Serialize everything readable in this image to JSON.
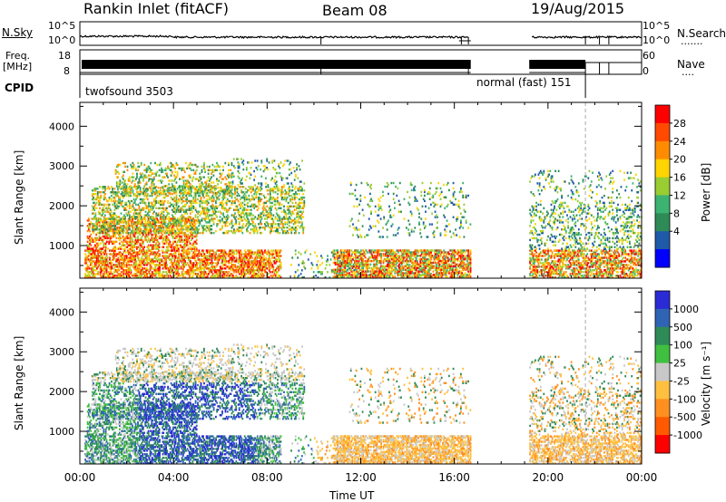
{
  "header": {
    "title": "Rankin Inlet (fitACF)",
    "beam": "Beam 08",
    "date": "19/Aug/2015"
  },
  "panels": {
    "nsky": {
      "label": "N.Sky",
      "left_ticks": [
        "10^5",
        "10^0"
      ],
      "right_ticks": [
        "10^5",
        "10^0"
      ],
      "right_label": "N.Search",
      "right_dots": "·······"
    },
    "freq": {
      "label_line1": "Freq.",
      "label_line2": "[MHz]",
      "left_ticks": [
        "18",
        "8"
      ],
      "right_ticks": [
        "60",
        "0"
      ],
      "right_label": "Nave",
      "right_dots": "····"
    },
    "cpid": {
      "label": "CPID",
      "programs": [
        "twofsound 3503",
        "normal (fast) 151"
      ]
    }
  },
  "chart_data": [
    {
      "type": "heatmap",
      "title": "",
      "xlabel": "Time UT",
      "ylabel": "Slant Range [km]",
      "x_ticks": [
        "00:00",
        "04:00",
        "08:00",
        "12:00",
        "16:00",
        "20:00",
        "00:00"
      ],
      "y_ticks": [
        1000,
        2000,
        3000,
        4000
      ],
      "xlim_hours": [
        0,
        24
      ],
      "ylim_km": [
        180,
        4600
      ],
      "colorbar": {
        "label": "Power [dB]",
        "ticks": [
          "28",
          "24",
          "20",
          "16",
          "12",
          "8",
          "4"
        ],
        "colors": [
          "#ff0000",
          "#ff4a00",
          "#ff8c00",
          "#ffd400",
          "#9acd32",
          "#3cb371",
          "#2e8b57",
          "#1e5aa8",
          "#0000ff"
        ]
      }
    },
    {
      "type": "heatmap",
      "title": "",
      "xlabel": "Time UT",
      "ylabel": "Slant Range [km]",
      "x_ticks": [
        "00:00",
        "04:00",
        "08:00",
        "12:00",
        "16:00",
        "20:00",
        "00:00"
      ],
      "y_ticks": [
        1000,
        2000,
        3000,
        4000
      ],
      "xlim_hours": [
        0,
        24
      ],
      "ylim_km": [
        180,
        4600
      ],
      "colorbar": {
        "label": "Velocity [m s⁻¹]",
        "ticks": [
          "1000",
          "500",
          "100",
          "25",
          "-25",
          "-100",
          "-500",
          "-1000"
        ],
        "colors": [
          "#2b2bd6",
          "#2f64b5",
          "#2e8b57",
          "#40c040",
          "#c8c8c8",
          "#ffc040",
          "#ff9020",
          "#ff5a00",
          "#ff0000"
        ]
      }
    }
  ],
  "axis": {
    "time_label": "Time UT"
  }
}
